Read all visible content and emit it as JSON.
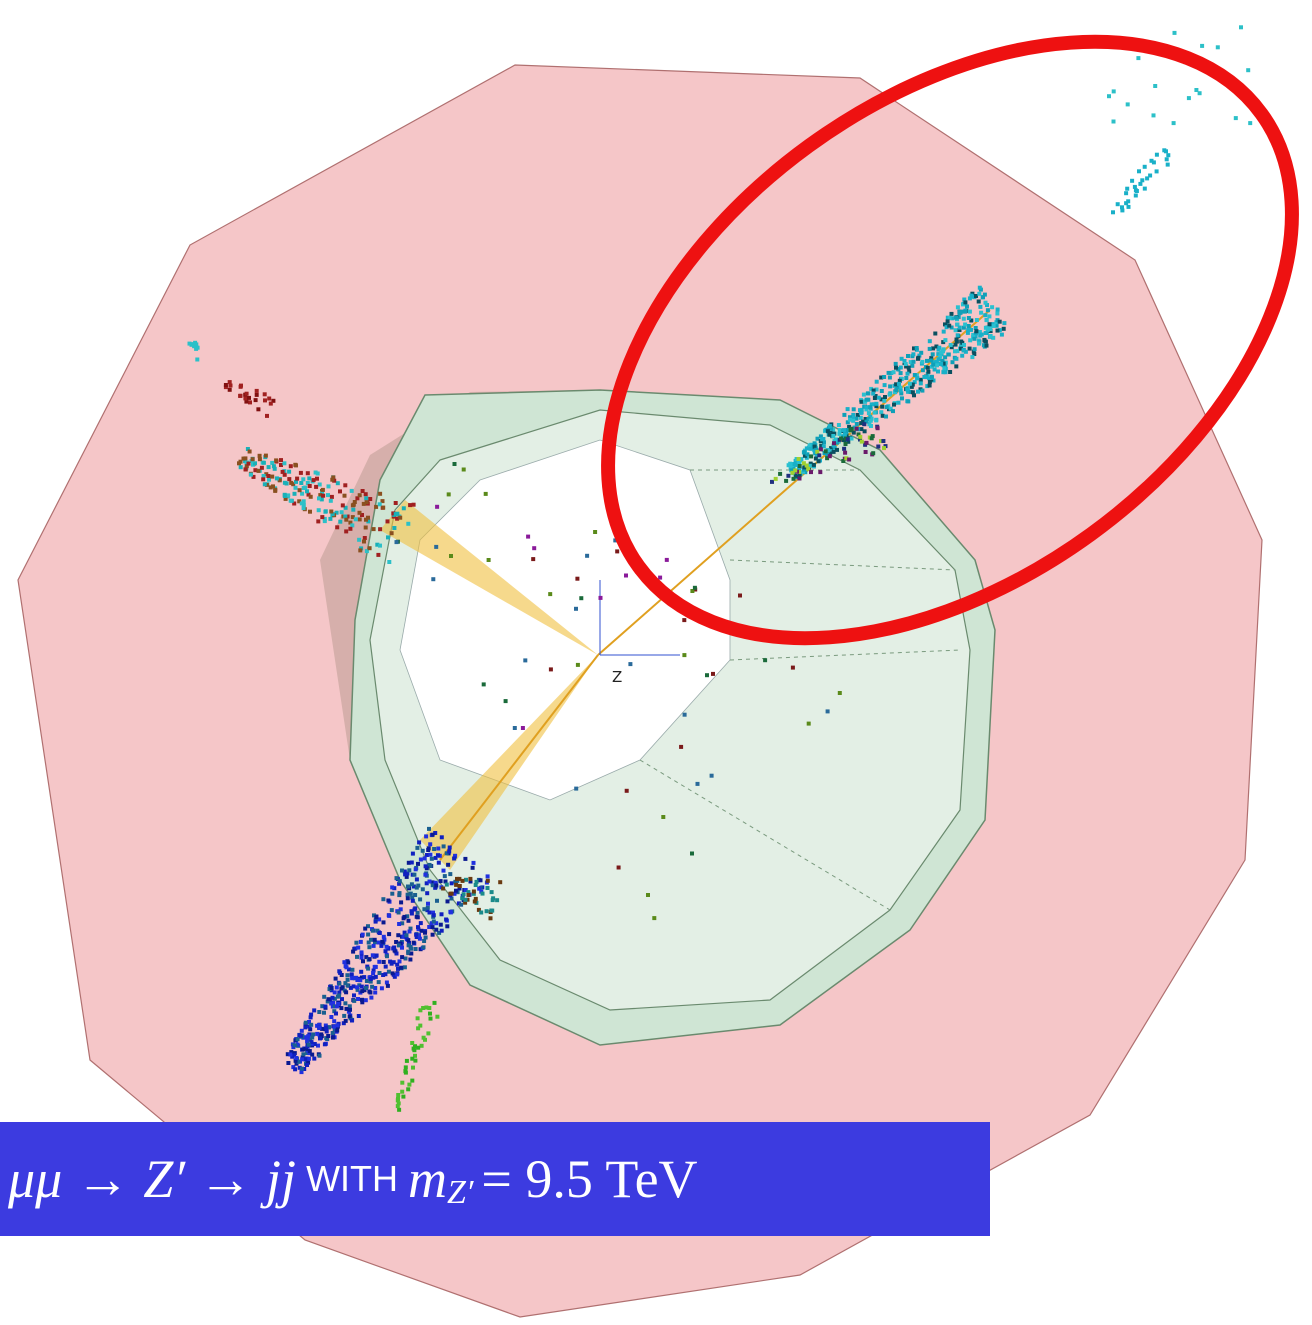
{
  "axis_label": "Z",
  "caption": {
    "process": "μμ → Z′ → jj",
    "connector": "WITH",
    "mass_symbol": "m",
    "mass_subscript": "Z′",
    "mass_value": "= 9.5 TeV"
  }
}
